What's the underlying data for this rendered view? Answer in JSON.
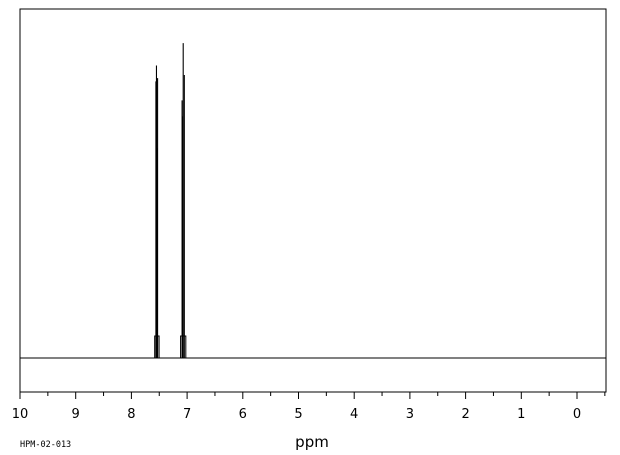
{
  "chart_data": {
    "type": "line",
    "title": "",
    "xlabel": "ppm",
    "ylabel": "",
    "sample_id": "HPM-02-013",
    "xlim": [
      10,
      0
    ],
    "x_reversed": true,
    "ylim": [
      0,
      1
    ],
    "grid": false,
    "ticks": {
      "major": [
        10,
        9,
        8,
        7,
        6,
        5,
        4,
        3,
        2,
        1,
        0
      ],
      "major_labels": [
        "10",
        "9",
        "8",
        "7",
        "6",
        "5",
        "4",
        "3",
        "2",
        "1",
        "0"
      ],
      "minor_step": 0.5
    },
    "peaks": [
      {
        "x": 7.56,
        "height": 0.87
      },
      {
        "x": 7.55,
        "height": 0.92
      },
      {
        "x": 7.54,
        "height": 0.66
      },
      {
        "x": 7.53,
        "height": 0.88
      },
      {
        "x": 7.09,
        "height": 0.81
      },
      {
        "x": 7.08,
        "height": 0.76
      },
      {
        "x": 7.07,
        "height": 0.99
      },
      {
        "x": 7.05,
        "height": 0.89
      }
    ],
    "colors": {
      "line": "#000000",
      "background": "#ffffff"
    }
  }
}
